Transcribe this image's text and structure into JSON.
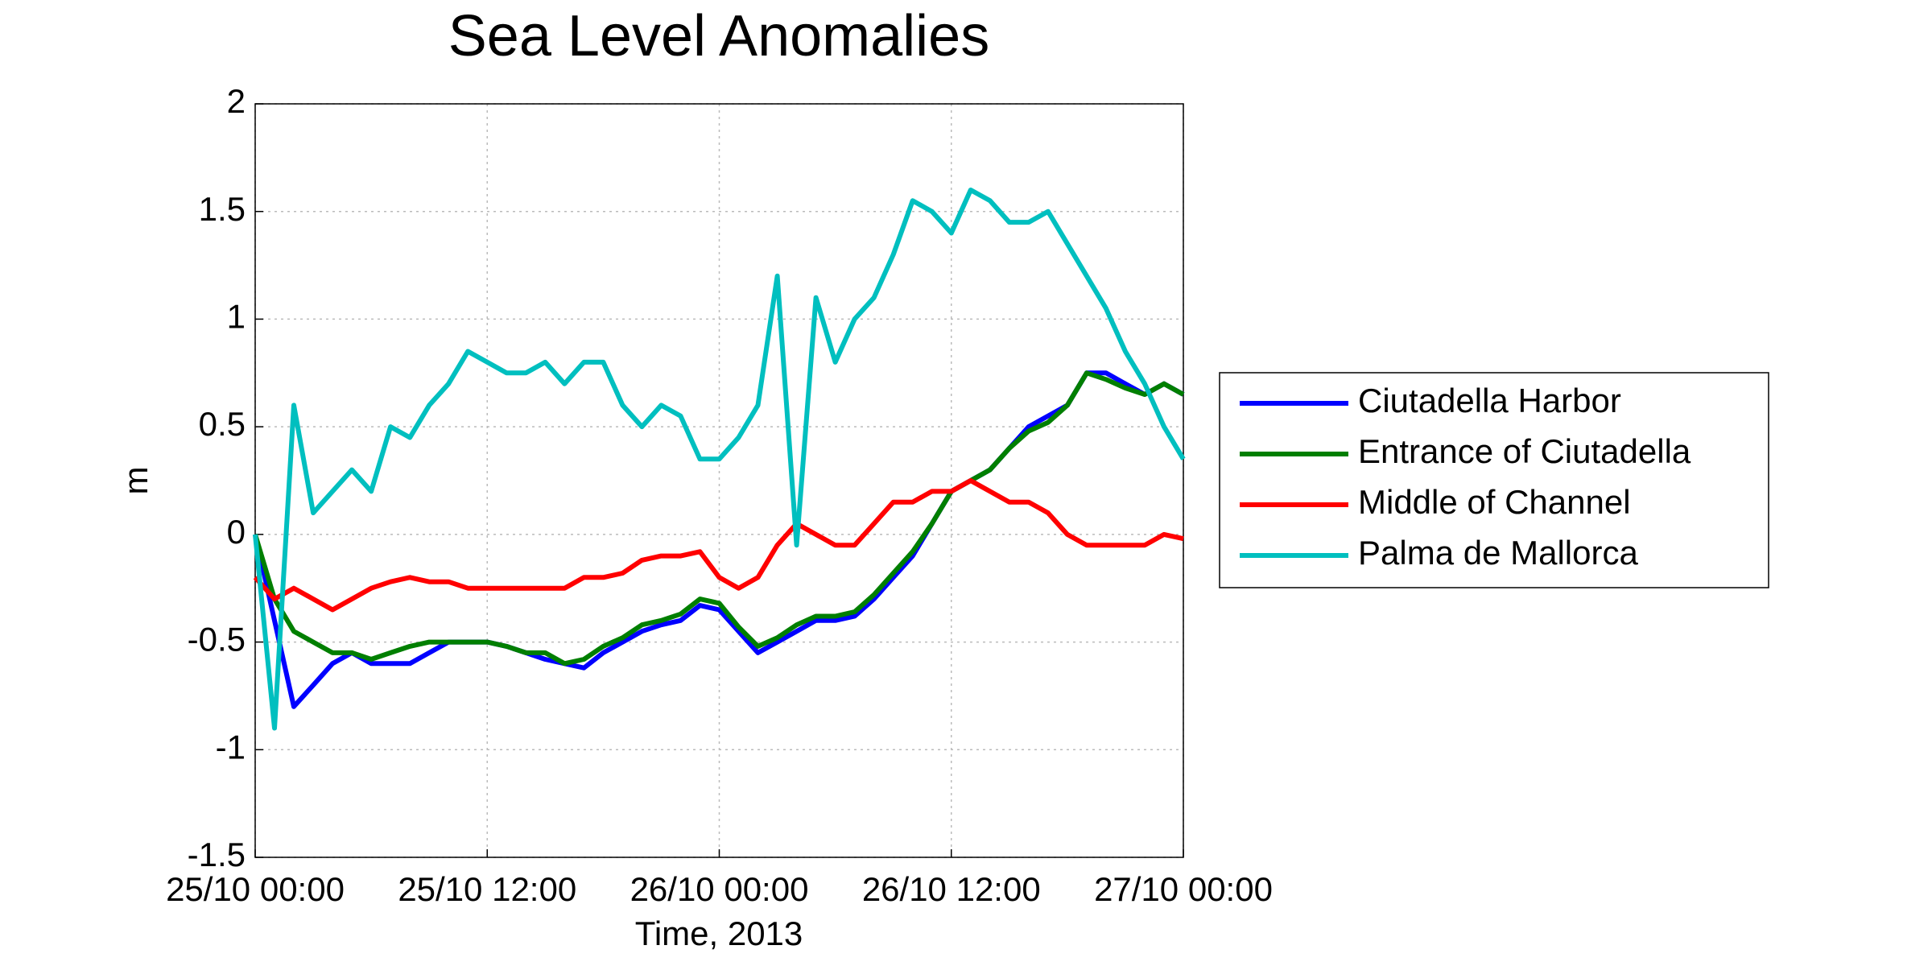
{
  "chart_data": {
    "type": "line",
    "title": "Sea Level Anomalies",
    "x_label": "Time, 2013",
    "y_label": "m",
    "x": [
      0,
      1,
      2,
      3,
      4,
      5,
      6,
      7,
      8,
      9,
      10,
      11,
      12,
      13,
      14,
      15,
      16,
      17,
      18,
      19,
      20,
      21,
      22,
      23,
      24,
      25,
      26,
      27,
      28,
      29,
      30,
      31,
      32,
      33,
      34,
      35,
      36,
      37,
      38,
      39,
      40,
      41,
      42,
      43,
      44,
      45,
      46,
      47,
      48
    ],
    "xlim": [
      0,
      48
    ],
    "xticks": [
      {
        "value": 0,
        "label": "25/10 00:00"
      },
      {
        "value": 12,
        "label": "25/10 12:00"
      },
      {
        "value": 24,
        "label": "26/10 00:00"
      },
      {
        "value": 36,
        "label": "26/10 12:00"
      },
      {
        "value": 48,
        "label": "27/10 00:00"
      }
    ],
    "ylim": [
      -1.5,
      2
    ],
    "yticks": [
      -1.5,
      -1,
      -0.5,
      0,
      0.5,
      1,
      1.5,
      2
    ],
    "grid": true,
    "legend": "outside-right",
    "series": [
      {
        "name": "Ciutadella Harbor",
        "color": "#0000ff",
        "values": [
          0,
          -0.4,
          -0.8,
          -0.7,
          -0.6,
          -0.55,
          -0.6,
          -0.6,
          -0.6,
          -0.55,
          -0.5,
          -0.5,
          -0.5,
          -0.52,
          -0.55,
          -0.58,
          -0.6,
          -0.62,
          -0.55,
          -0.5,
          -0.45,
          -0.42,
          -0.4,
          -0.33,
          -0.35,
          -0.45,
          -0.55,
          -0.5,
          -0.45,
          -0.4,
          -0.4,
          -0.38,
          -0.3,
          -0.2,
          -0.1,
          0.05,
          0.2,
          0.25,
          0.3,
          0.4,
          0.5,
          0.55,
          0.6,
          0.75,
          0.75,
          0.7,
          0.65,
          0.7,
          0.65
        ]
      },
      {
        "name": "Entrance of Ciutadella",
        "color": "#007f00",
        "values": [
          0,
          -0.3,
          -0.45,
          -0.5,
          -0.55,
          -0.55,
          -0.58,
          -0.55,
          -0.52,
          -0.5,
          -0.5,
          -0.5,
          -0.5,
          -0.52,
          -0.55,
          -0.55,
          -0.6,
          -0.58,
          -0.52,
          -0.48,
          -0.42,
          -0.4,
          -0.37,
          -0.3,
          -0.32,
          -0.43,
          -0.52,
          -0.48,
          -0.42,
          -0.38,
          -0.38,
          -0.36,
          -0.28,
          -0.18,
          -0.08,
          0.05,
          0.2,
          0.25,
          0.3,
          0.4,
          0.48,
          0.52,
          0.6,
          0.75,
          0.72,
          0.68,
          0.65,
          0.7,
          0.65
        ]
      },
      {
        "name": "Middle of Channel",
        "color": "#ff0000",
        "values": [
          -0.2,
          -0.3,
          -0.25,
          -0.3,
          -0.35,
          -0.3,
          -0.25,
          -0.22,
          -0.2,
          -0.22,
          -0.22,
          -0.25,
          -0.25,
          -0.25,
          -0.25,
          -0.25,
          -0.25,
          -0.2,
          -0.2,
          -0.18,
          -0.12,
          -0.1,
          -0.1,
          -0.08,
          -0.2,
          -0.25,
          -0.2,
          -0.05,
          0.05,
          0,
          -0.05,
          -0.05,
          0.05,
          0.15,
          0.15,
          0.2,
          0.2,
          0.25,
          0.2,
          0.15,
          0.15,
          0.1,
          0,
          -0.05,
          -0.05,
          -0.05,
          -0.05,
          0,
          -0.02
        ]
      },
      {
        "name": "Palma de Mallorca",
        "color": "#00bfbf",
        "values": [
          0,
          -0.9,
          0.6,
          0.1,
          0.2,
          0.3,
          0.2,
          0.5,
          0.45,
          0.6,
          0.7,
          0.85,
          0.8,
          0.75,
          0.75,
          0.8,
          0.7,
          0.8,
          0.8,
          0.6,
          0.5,
          0.6,
          0.55,
          0.35,
          0.35,
          0.45,
          0.6,
          1.2,
          -0.05,
          1.1,
          0.8,
          1,
          1.1,
          1.3,
          1.55,
          1.5,
          1.4,
          1.6,
          1.55,
          1.45,
          1.45,
          1.5,
          1.35,
          1.2,
          1.05,
          0.85,
          0.7,
          0.5,
          0.35
        ]
      }
    ]
  }
}
